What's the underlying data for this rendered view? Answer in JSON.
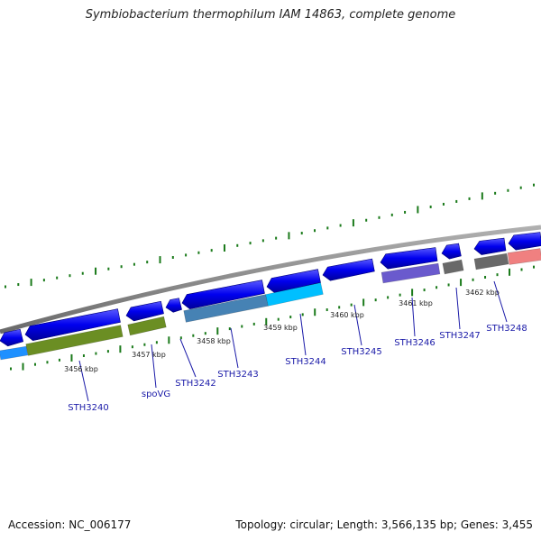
{
  "title": "Symbiobacterium thermophilum IAM 14863, complete genome",
  "footer": {
    "accession": "Accession: NC_006177",
    "summary": "Topology: circular; Length: 3,566,135 bp; Genes: 3,455"
  },
  "ruler": [
    "3456 kbp",
    "3457 kbp",
    "3458 kbp",
    "3459 kbp",
    "3460 kbp",
    "3461 kbp",
    "3462 kbp"
  ],
  "genes": [
    {
      "name": "STH3240",
      "color": "#6b8e23"
    },
    {
      "name": "spoVG",
      "color": "#6b8e23"
    },
    {
      "name": "STH3242",
      "color": "#4682b4"
    },
    {
      "name": "STH3243",
      "color": "#4682b4"
    },
    {
      "name": "STH3244",
      "color": "#00bfff"
    },
    {
      "name": "STH3245",
      "color": "#00bfff"
    },
    {
      "name": "STH3246",
      "color": "#6a5acd"
    },
    {
      "name": "STH3247",
      "color": "#696969"
    },
    {
      "name": "STH3248",
      "color": "#f08080"
    }
  ],
  "colors": {
    "cds_strand": "#0000ee",
    "backbone": "#8c8c8c",
    "gc_ticks": "#1a7a1a",
    "label_text": "#1a1aa8"
  }
}
